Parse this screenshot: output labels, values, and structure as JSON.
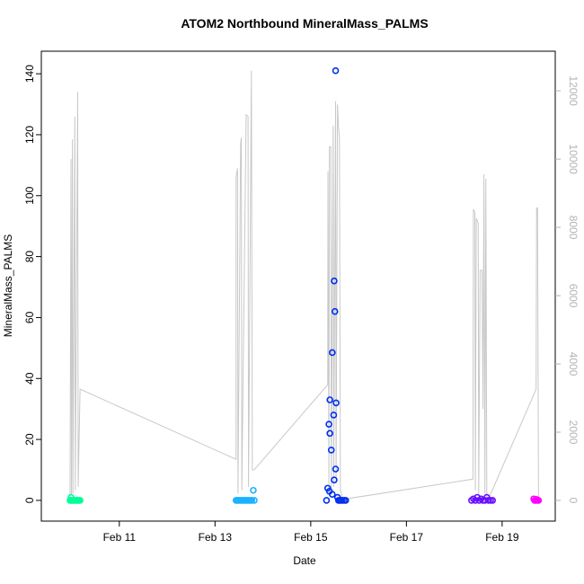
{
  "chart_data": {
    "type": "scatter",
    "title": "ATOM2 Northbound MineralMass_PALMS",
    "x_label": "Date",
    "y_label": "MineralMass_PALMS",
    "xlim": [
      9.37,
      20.11
    ],
    "ylim": [
      -6.8,
      147.4
    ],
    "y2lim": [
      -605,
      13160
    ],
    "xticks": [
      {
        "value": 11,
        "label": "Feb 11"
      },
      {
        "value": 13,
        "label": "Feb 13"
      },
      {
        "value": 15,
        "label": "Feb 15"
      },
      {
        "value": 17,
        "label": "Feb 17"
      },
      {
        "value": 19,
        "label": "Feb 19"
      }
    ],
    "yticks": [
      0,
      20,
      40,
      60,
      80,
      100,
      120,
      140
    ],
    "y2ticks": [
      0,
      2000,
      4000,
      6000,
      8000,
      10000,
      12000
    ],
    "series": [
      {
        "type": "line",
        "axis": "y2",
        "color": "#c8c8c8",
        "x": [
          9.97,
          9.99,
          10.0,
          10.02,
          10.03,
          10.07,
          10.08,
          10.13,
          10.14,
          10.18,
          13.44,
          13.44,
          13.47,
          13.48,
          13.535,
          13.55,
          13.56,
          13.65,
          13.69,
          13.7,
          13.76,
          13.78,
          13.82,
          15.355,
          15.36,
          15.38,
          15.39,
          15.42,
          15.43,
          15.47,
          15.48,
          15.52,
          15.53,
          15.56,
          15.58,
          15.6,
          15.62,
          15.66,
          15.73,
          18.39,
          18.4,
          18.43,
          18.44,
          18.46,
          18.5,
          18.51,
          18.54,
          18.58,
          18.6,
          18.62,
          18.64,
          18.66,
          18.68,
          18.73,
          19.71,
          19.72,
          19.74,
          19.76
        ],
        "values": [
          0,
          10000,
          150,
          10580,
          200,
          11250,
          300,
          11970,
          400,
          3260,
          1205,
          9470,
          9730,
          200,
          10450,
          10630,
          300,
          11300,
          11250,
          400,
          12590,
          890,
          900,
          3390,
          9640,
          200,
          10360,
          10360,
          300,
          10980,
          400,
          11700,
          500,
          11600,
          10940,
          10630,
          300,
          100,
          45,
          625,
          8530,
          8440,
          300,
          8260,
          8130,
          200,
          6740,
          6740,
          2680,
          9555,
          200,
          9420,
          100,
          90,
          3260,
          8570,
          8570,
          100
        ]
      },
      {
        "type": "scatter",
        "color": "#00ff99",
        "x": [
          9.97,
          9.98,
          9.99,
          10.0,
          10.02,
          10.04,
          10.06,
          10.08,
          10.1,
          10.12,
          10.14,
          10.16,
          10.18
        ],
        "values": [
          0,
          0,
          1,
          0,
          0,
          0,
          0,
          0,
          0,
          0,
          0,
          0,
          0
        ]
      },
      {
        "type": "scatter",
        "color": "#1ab2ff",
        "x": [
          13.44,
          13.46,
          13.48,
          13.5,
          13.53,
          13.56,
          13.59,
          13.62,
          13.65,
          13.68,
          13.71,
          13.74,
          13.77,
          13.8,
          13.82
        ],
        "values": [
          0,
          0,
          0,
          0,
          0,
          0,
          0,
          0,
          0,
          0,
          0,
          0,
          0,
          3.3,
          0
        ]
      },
      {
        "type": "scatter",
        "color": "#0030ee",
        "x": [
          15.33,
          15.355,
          15.39,
          15.38,
          15.4,
          15.4,
          15.43,
          15.45,
          15.49,
          15.505,
          15.48,
          15.49,
          15.52,
          15.52,
          15.53,
          15.45,
          15.56,
          15.58,
          15.6,
          15.63,
          15.66,
          15.7,
          15.73
        ],
        "values": [
          0,
          4,
          3,
          25,
          33,
          22,
          16.5,
          48.5,
          72,
          62,
          28,
          6.7,
          141,
          10.3,
          32,
          2,
          1,
          0,
          0,
          0,
          0,
          0,
          0
        ]
      },
      {
        "type": "scatter",
        "color": "#6a10ff",
        "x": [
          18.36,
          18.4,
          18.44,
          18.48,
          18.52,
          18.56,
          18.6,
          18.64,
          18.68,
          18.72,
          18.76,
          18.8
        ],
        "values": [
          0,
          0.5,
          0,
          1,
          0,
          0.5,
          0,
          0,
          1,
          0,
          0,
          0
        ]
      },
      {
        "type": "scatter",
        "color": "#ff00ff",
        "x": [
          19.66,
          19.68,
          19.7,
          19.72,
          19.74,
          19.76
        ],
        "values": [
          0.5,
          0,
          0,
          0.3,
          0,
          0
        ]
      }
    ]
  }
}
